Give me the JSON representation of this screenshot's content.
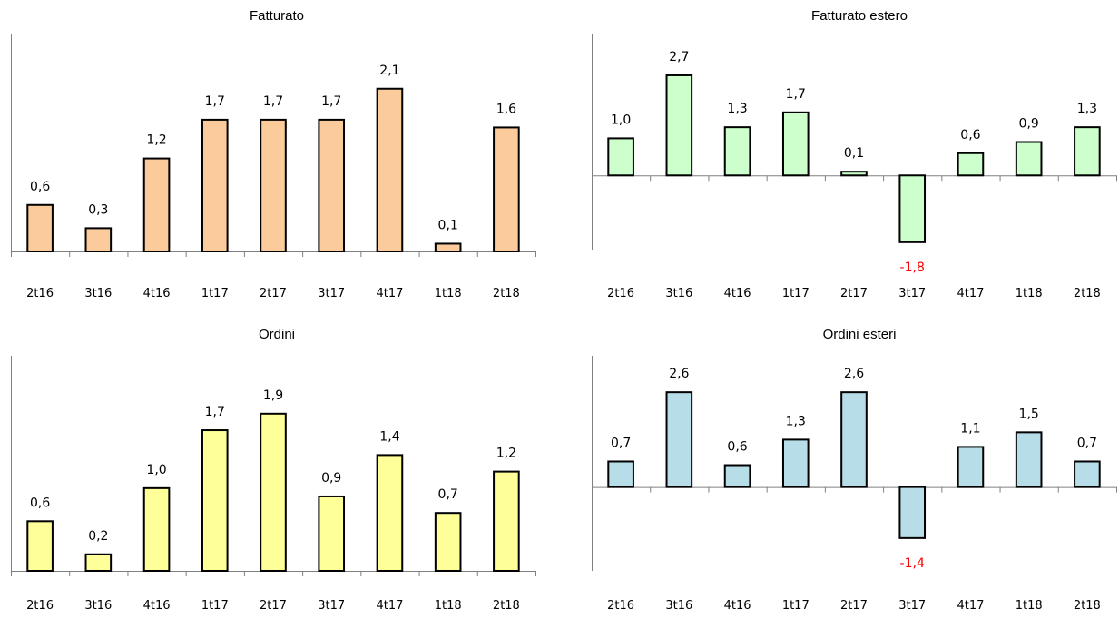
{
  "chart_data": [
    {
      "type": "bar",
      "title": "Fatturato",
      "categories": [
        "2t16",
        "3t16",
        "4t16",
        "1t17",
        "2t17",
        "3t17",
        "4t17",
        "1t18",
        "2t18"
      ],
      "values": [
        0.6,
        0.3,
        1.2,
        1.7,
        1.7,
        1.7,
        2.1,
        0.1,
        1.6
      ],
      "value_labels": [
        "0,6",
        "0,3",
        "1,2",
        "1,7",
        "1,7",
        "1,7",
        "2,1",
        "0,1",
        "1,6"
      ],
      "bar_color": "#FCCB9C",
      "negative_label_color": "#FF0000",
      "xlabel": "",
      "ylabel": "",
      "ylim": [
        0,
        2.8
      ],
      "grid": false
    },
    {
      "type": "bar",
      "title": "Fatturato estero",
      "categories": [
        "2t16",
        "3t16",
        "4t16",
        "1t17",
        "2t17",
        "3t17",
        "4t17",
        "1t18",
        "2t18"
      ],
      "values": [
        1.0,
        2.7,
        1.3,
        1.7,
        0.1,
        -1.8,
        0.6,
        0.9,
        1.3
      ],
      "value_labels": [
        "1,0",
        "2,7",
        "1,3",
        "1,7",
        "0,1",
        "-1,8",
        "0,6",
        "0,9",
        "1,3"
      ],
      "bar_color": "#CCFFCC",
      "negative_label_color": "#FF0000",
      "xlabel": "",
      "ylabel": "",
      "ylim": [
        -2.0,
        3.8
      ],
      "grid": false
    },
    {
      "type": "bar",
      "title": "Ordini",
      "categories": [
        "2t16",
        "3t16",
        "4t16",
        "1t17",
        "2t17",
        "3t17",
        "4t17",
        "1t18",
        "2t18"
      ],
      "values": [
        0.6,
        0.2,
        1.0,
        1.7,
        1.9,
        0.9,
        1.4,
        0.7,
        1.2
      ],
      "value_labels": [
        "0,6",
        "0,2",
        "1,0",
        "1,7",
        "1,9",
        "0,9",
        "1,4",
        "0,7",
        "1,2"
      ],
      "bar_color": "#FFFF99",
      "negative_label_color": "#FF0000",
      "xlabel": "",
      "ylabel": "",
      "ylim": [
        0,
        2.6
      ],
      "grid": false
    },
    {
      "type": "bar",
      "title": "Ordini esteri",
      "categories": [
        "2t16",
        "3t16",
        "4t16",
        "1t17",
        "2t17",
        "3t17",
        "4t17",
        "1t18",
        "2t18"
      ],
      "values": [
        0.7,
        2.6,
        0.6,
        1.3,
        2.6,
        -1.4,
        1.1,
        1.5,
        0.7
      ],
      "value_labels": [
        "0,7",
        "2,6",
        "0,6",
        "1,3",
        "2,6",
        "-1,4",
        "1,1",
        "1,5",
        "0,7"
      ],
      "bar_color": "#B7DEE8",
      "negative_label_color": "#FF0000",
      "xlabel": "",
      "ylabel": "",
      "ylim": [
        -2.3,
        3.6
      ],
      "grid": false
    }
  ]
}
